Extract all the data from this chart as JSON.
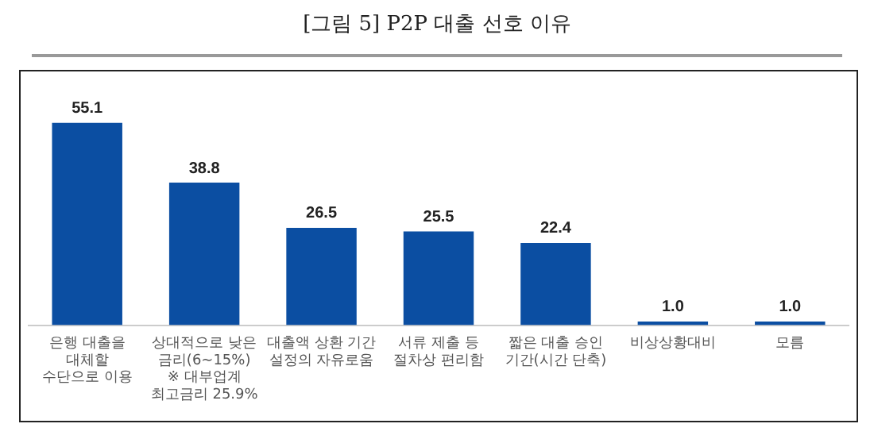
{
  "chart_data": {
    "type": "bar",
    "title": "[그림 5] P2P 대출 선호 이유",
    "categories": [
      "은행 대출을\n대체할\n수단으로 이용",
      "상대적으로 낮은\n금리(6~15%)\n※ 대부업계\n최고금리 25.9%",
      "대출액 상환 기간\n설정의 자유로움",
      "서류 제출 등\n절차상 편리함",
      "짧은 대출 승인\n기간(시간 단축)",
      "비상상황대비",
      "모름"
    ],
    "values": [
      55.1,
      38.8,
      26.5,
      25.5,
      22.4,
      1.0,
      1.0
    ],
    "value_labels": [
      "55.1",
      "38.8",
      "26.5",
      "25.5",
      "22.4",
      "1.0",
      "1.0"
    ],
    "color": "#0b4ea2"
  }
}
